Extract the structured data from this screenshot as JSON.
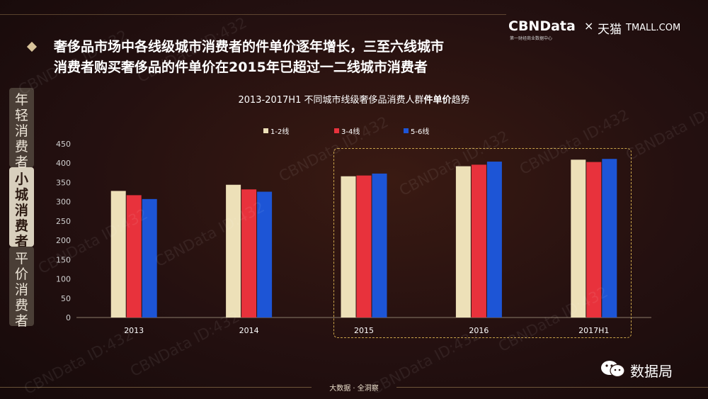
{
  "headline": {
    "line1": "奢侈品市场中各线级城市消费者的件单价逐年增长，三至六线城市",
    "line2": "消费者购买奢侈品的件单价在2015年已超过一二线城市消费者"
  },
  "brand": {
    "cbn": "CBNData",
    "sub": "第一财经商业数据中心",
    "x": "×",
    "tmall_cn": "天猫",
    "tmall_en": "TMALL.COM"
  },
  "side_tabs": [
    {
      "label": "年轻消费者",
      "active": false
    },
    {
      "label": "小城消费者",
      "active": true
    },
    {
      "label": "平价消费者",
      "active": false
    }
  ],
  "chart_data": {
    "type": "bar",
    "title_prefix": "2013-2017H1 不同城市线级奢侈品消费人群",
    "title_bold": "件单价",
    "title_suffix": "趋势",
    "categories": [
      "2013",
      "2014",
      "2015",
      "2016",
      "2017H1"
    ],
    "series": [
      {
        "name": "1-2线",
        "color": "#ede0b8",
        "values": [
          328,
          344,
          366,
          392,
          409
        ]
      },
      {
        "name": "3-4线",
        "color": "#e8323c",
        "values": [
          317,
          332,
          368,
          396,
          403
        ]
      },
      {
        "name": "5-6线",
        "color": "#1d55d6",
        "values": [
          307,
          326,
          373,
          404,
          411
        ]
      }
    ],
    "yticks": [
      "0",
      "50",
      "100",
      "150",
      "200",
      "250",
      "300",
      "350",
      "400",
      "450"
    ],
    "ylim": [
      0,
      450
    ],
    "grid": false,
    "legend": "top-center",
    "highlight": [
      "2015",
      "2016",
      "2017H1"
    ]
  },
  "bottom_caption": "大数据 · 全洞察",
  "wechat": {
    "name": "数据局"
  },
  "watermark": "CBNData ID:432"
}
